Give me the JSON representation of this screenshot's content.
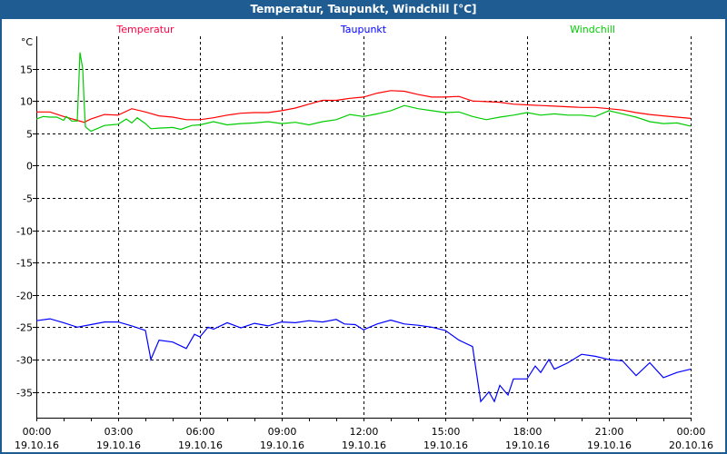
{
  "window": {
    "title": "Temperatur, Taupunkt, Windchill [°C]"
  },
  "chart_data": {
    "type": "line",
    "title": "Temperatur, Taupunkt, Windchill [°C]",
    "ylabel": "°C",
    "xlabel": "",
    "xlim_hours": [
      0,
      24
    ],
    "ylim": [
      -39,
      20
    ],
    "grid": true,
    "yticks": [
      15,
      10,
      5,
      0,
      -5,
      -10,
      -15,
      -20,
      -25,
      -30,
      -35
    ],
    "xticks": [
      {
        "hour": 0,
        "time": "00:00",
        "date": "19.10.16"
      },
      {
        "hour": 3,
        "time": "03:00",
        "date": "19.10.16"
      },
      {
        "hour": 6,
        "time": "06:00",
        "date": "19.10.16"
      },
      {
        "hour": 9,
        "time": "09:00",
        "date": "19.10.16"
      },
      {
        "hour": 12,
        "time": "12:00",
        "date": "19.10.16"
      },
      {
        "hour": 15,
        "time": "15:00",
        "date": "19.10.16"
      },
      {
        "hour": 18,
        "time": "18:00",
        "date": "19.10.16"
      },
      {
        "hour": 21,
        "time": "21:00",
        "date": "19.10.16"
      },
      {
        "hour": 24,
        "time": "00:00",
        "date": "20.10.16"
      }
    ],
    "series": [
      {
        "name": "Temperatur",
        "color": "#ff0000",
        "legend_color": "#ff0040",
        "legend_pos": "top-left",
        "points": [
          [
            0,
            8.3
          ],
          [
            0.5,
            8.3
          ],
          [
            1,
            7.6
          ],
          [
            1.5,
            7.0
          ],
          [
            1.75,
            6.7
          ],
          [
            2,
            7.2
          ],
          [
            2.5,
            7.9
          ],
          [
            3,
            7.8
          ],
          [
            3.5,
            8.8
          ],
          [
            4,
            8.3
          ],
          [
            4.5,
            7.7
          ],
          [
            5,
            7.5
          ],
          [
            5.5,
            7.1
          ],
          [
            6,
            7.1
          ],
          [
            6.5,
            7.4
          ],
          [
            7,
            7.8
          ],
          [
            7.5,
            8.1
          ],
          [
            8,
            8.2
          ],
          [
            8.5,
            8.2
          ],
          [
            9,
            8.5
          ],
          [
            9.5,
            8.9
          ],
          [
            10,
            9.5
          ],
          [
            10.5,
            10.1
          ],
          [
            11,
            10.1
          ],
          [
            11.5,
            10.4
          ],
          [
            12,
            10.6
          ],
          [
            12.5,
            11.2
          ],
          [
            13,
            11.6
          ],
          [
            13.5,
            11.5
          ],
          [
            14,
            11.0
          ],
          [
            14.5,
            10.6
          ],
          [
            15,
            10.6
          ],
          [
            15.5,
            10.7
          ],
          [
            16,
            10.0
          ],
          [
            16.5,
            9.9
          ],
          [
            17,
            9.8
          ],
          [
            17.5,
            9.5
          ],
          [
            18,
            9.4
          ],
          [
            18.5,
            9.3
          ],
          [
            19,
            9.2
          ],
          [
            19.5,
            9.1
          ],
          [
            20,
            9.0
          ],
          [
            20.5,
            9.0
          ],
          [
            21,
            8.8
          ],
          [
            21.5,
            8.6
          ],
          [
            22,
            8.2
          ],
          [
            22.5,
            7.9
          ],
          [
            23,
            7.7
          ],
          [
            23.5,
            7.5
          ],
          [
            24,
            7.3
          ]
        ]
      },
      {
        "name": "Taupunkt",
        "color": "#0000ff",
        "legend_color": "#0000ff",
        "legend_pos": "top-center",
        "points": [
          [
            0,
            -24
          ],
          [
            0.5,
            -23.7
          ],
          [
            1,
            -24.3
          ],
          [
            1.5,
            -25
          ],
          [
            2,
            -24.6
          ],
          [
            2.5,
            -24.2
          ],
          [
            3,
            -24.2
          ],
          [
            3.5,
            -24.8
          ],
          [
            4,
            -25.5
          ],
          [
            4.2,
            -30
          ],
          [
            4.5,
            -27
          ],
          [
            5,
            -27.3
          ],
          [
            5.5,
            -28.3
          ],
          [
            5.8,
            -26.1
          ],
          [
            6,
            -26.5
          ],
          [
            6.3,
            -25
          ],
          [
            6.5,
            -25.3
          ],
          [
            7,
            -24.3
          ],
          [
            7.5,
            -25.1
          ],
          [
            8,
            -24.4
          ],
          [
            8.5,
            -24.8
          ],
          [
            9,
            -24.2
          ],
          [
            9.5,
            -24.3
          ],
          [
            10,
            -24.0
          ],
          [
            10.5,
            -24.2
          ],
          [
            11,
            -23.8
          ],
          [
            11.3,
            -24.5
          ],
          [
            11.7,
            -24.6
          ],
          [
            12,
            -25.4
          ],
          [
            12.5,
            -24.5
          ],
          [
            13,
            -23.9
          ],
          [
            13.5,
            -24.5
          ],
          [
            14,
            -24.7
          ],
          [
            14.5,
            -25.0
          ],
          [
            15,
            -25.5
          ],
          [
            15.5,
            -27
          ],
          [
            16,
            -28
          ],
          [
            16.3,
            -36.5
          ],
          [
            16.6,
            -35
          ],
          [
            16.8,
            -36.5
          ],
          [
            17,
            -34
          ],
          [
            17.3,
            -35.5
          ],
          [
            17.5,
            -33
          ],
          [
            18,
            -33
          ],
          [
            18.3,
            -31
          ],
          [
            18.5,
            -32
          ],
          [
            18.8,
            -30
          ],
          [
            19,
            -31.5
          ],
          [
            19.5,
            -30.5
          ],
          [
            20,
            -29.2
          ],
          [
            20.5,
            -29.5
          ],
          [
            21,
            -30
          ],
          [
            21.5,
            -30.2
          ],
          [
            22,
            -32.5
          ],
          [
            22.5,
            -30.5
          ],
          [
            23,
            -32.8
          ],
          [
            23.5,
            -32
          ],
          [
            24,
            -31.5
          ]
        ]
      },
      {
        "name": "Windchill",
        "color": "#00cc00",
        "legend_color": "#00cc00",
        "legend_pos": "top-right",
        "points": [
          [
            0,
            7.2
          ],
          [
            0.25,
            7.6
          ],
          [
            0.5,
            7.5
          ],
          [
            0.75,
            7.5
          ],
          [
            1,
            7.0
          ],
          [
            1.1,
            7.6
          ],
          [
            1.3,
            6.9
          ],
          [
            1.5,
            6.9
          ],
          [
            1.55,
            12
          ],
          [
            1.6,
            17.5
          ],
          [
            1.7,
            15
          ],
          [
            1.75,
            10
          ],
          [
            1.8,
            6
          ],
          [
            2,
            5.3
          ],
          [
            2.5,
            6.2
          ],
          [
            3,
            6.4
          ],
          [
            3.3,
            7.2
          ],
          [
            3.5,
            6.6
          ],
          [
            3.7,
            7.4
          ],
          [
            4,
            6.5
          ],
          [
            4.2,
            5.7
          ],
          [
            4.5,
            5.8
          ],
          [
            5,
            5.9
          ],
          [
            5.3,
            5.6
          ],
          [
            5.7,
            6.2
          ],
          [
            6,
            6.3
          ],
          [
            6.5,
            6.8
          ],
          [
            7,
            6.3
          ],
          [
            7.5,
            6.5
          ],
          [
            8,
            6.6
          ],
          [
            8.5,
            6.8
          ],
          [
            9,
            6.5
          ],
          [
            9.5,
            6.7
          ],
          [
            10,
            6.3
          ],
          [
            10.5,
            6.8
          ],
          [
            11,
            7.1
          ],
          [
            11.5,
            7.9
          ],
          [
            12,
            7.6
          ],
          [
            12.5,
            8.0
          ],
          [
            13,
            8.5
          ],
          [
            13.5,
            9.3
          ],
          [
            14,
            8.8
          ],
          [
            14.5,
            8.5
          ],
          [
            15,
            8.2
          ],
          [
            15.5,
            8.3
          ],
          [
            16,
            7.6
          ],
          [
            16.5,
            7.1
          ],
          [
            17,
            7.5
          ],
          [
            17.5,
            7.8
          ],
          [
            18,
            8.2
          ],
          [
            18.5,
            7.8
          ],
          [
            19,
            8.0
          ],
          [
            19.5,
            7.8
          ],
          [
            20,
            7.8
          ],
          [
            20.5,
            7.6
          ],
          [
            21,
            8.5
          ],
          [
            21.5,
            8.0
          ],
          [
            22,
            7.5
          ],
          [
            22.5,
            6.8
          ],
          [
            23,
            6.5
          ],
          [
            23.5,
            6.6
          ],
          [
            24,
            6.1
          ]
        ]
      }
    ]
  }
}
